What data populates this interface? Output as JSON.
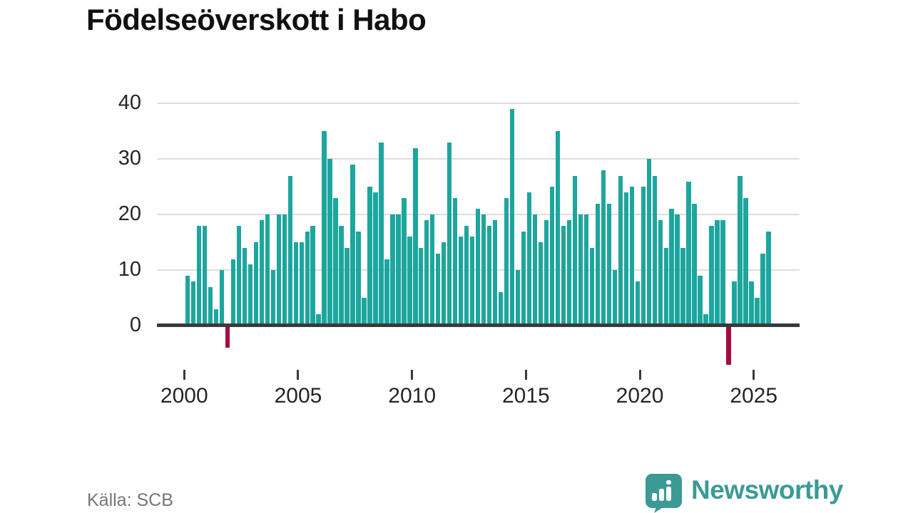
{
  "title": "Födelseöverskott i Habo",
  "source": "Källa: SCB",
  "logo": {
    "text": "Newsworthy"
  },
  "chart_data": {
    "type": "bar",
    "title": "Födelseöverskott i Habo",
    "frequency": "quarterly",
    "x_start": "2000 Q1",
    "x_end": "2025 Q3",
    "by_year": [
      {
        "year": 2000,
        "q": [
          9,
          8,
          18,
          18
        ]
      },
      {
        "year": 2001,
        "q": [
          7,
          3,
          10,
          -4
        ]
      },
      {
        "year": 2002,
        "q": [
          12,
          18,
          14,
          11
        ]
      },
      {
        "year": 2003,
        "q": [
          15,
          19,
          20,
          10
        ]
      },
      {
        "year": 2004,
        "q": [
          20,
          20,
          27,
          15
        ]
      },
      {
        "year": 2005,
        "q": [
          15,
          17,
          18,
          2
        ]
      },
      {
        "year": 2006,
        "q": [
          35,
          30,
          23,
          18
        ]
      },
      {
        "year": 2007,
        "q": [
          14,
          29,
          17,
          5
        ]
      },
      {
        "year": 2008,
        "q": [
          25,
          24,
          33,
          12
        ]
      },
      {
        "year": 2009,
        "q": [
          20,
          20,
          23,
          16
        ]
      },
      {
        "year": 2010,
        "q": [
          32,
          14,
          19,
          20
        ]
      },
      {
        "year": 2011,
        "q": [
          13,
          15,
          33,
          23
        ]
      },
      {
        "year": 2012,
        "q": [
          16,
          18,
          16,
          21
        ]
      },
      {
        "year": 2013,
        "q": [
          20,
          18,
          19,
          6
        ]
      },
      {
        "year": 2014,
        "q": [
          23,
          39,
          10,
          17
        ]
      },
      {
        "year": 2015,
        "q": [
          24,
          20,
          15,
          19
        ]
      },
      {
        "year": 2016,
        "q": [
          25,
          35,
          18,
          19
        ]
      },
      {
        "year": 2017,
        "q": [
          27,
          20,
          20,
          14
        ]
      },
      {
        "year": 2018,
        "q": [
          22,
          28,
          22,
          10
        ]
      },
      {
        "year": 2019,
        "q": [
          27,
          24,
          25,
          8
        ]
      },
      {
        "year": 2020,
        "q": [
          25,
          30,
          27,
          19
        ]
      },
      {
        "year": 2021,
        "q": [
          14,
          21,
          20,
          14
        ]
      },
      {
        "year": 2022,
        "q": [
          26,
          22,
          9,
          2
        ]
      },
      {
        "year": 2023,
        "q": [
          18,
          19,
          19,
          -7
        ]
      },
      {
        "year": 2024,
        "q": [
          8,
          27,
          23,
          8
        ]
      },
      {
        "year": 2025,
        "q": [
          5,
          13,
          17
        ]
      }
    ],
    "y_ticks": [
      0,
      10,
      20,
      30,
      40
    ],
    "x_ticks": [
      2000,
      2005,
      2010,
      2015,
      2020,
      2025
    ],
    "ylim": [
      -8,
      42
    ],
    "xlabel": "",
    "ylabel": "",
    "grid": "horizontal",
    "legend": "none",
    "colors": {
      "positive_bar": "#1ca69e",
      "negative_bar": "#a50d3f",
      "gridline": "#dddddd",
      "axis": "#3a3a3a",
      "title_text": "#111111",
      "tick_text": "#262626",
      "source_text": "#767676",
      "logo_teal": "#3c9a94"
    }
  }
}
